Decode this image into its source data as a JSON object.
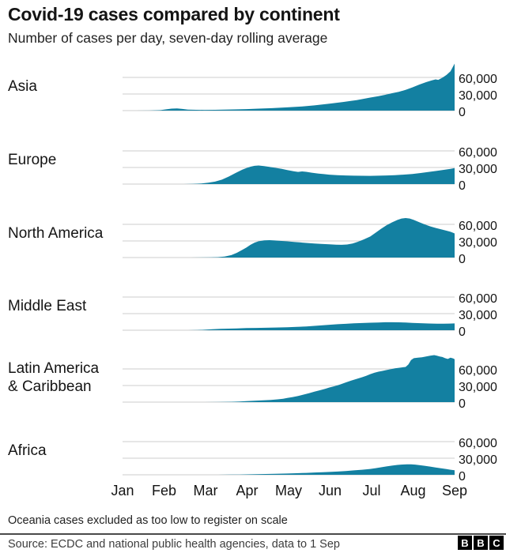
{
  "header": {
    "title": "Covid-19 cases compared by continent",
    "subtitle": "Number of cases per day, seven-day rolling average"
  },
  "chart_data": {
    "type": "area",
    "small_multiples": true,
    "title": "Covid-19 cases compared by continent",
    "subtitle": "Number of cases per day, seven-day rolling average",
    "area_color": "#1380A1",
    "gridline_color": "#cccccc",
    "x_axis": {
      "month_labels": [
        "Jan",
        "Feb",
        "Mar",
        "Apr",
        "May",
        "Jun",
        "Jul",
        "Aug",
        "Sep"
      ],
      "start": "1 Jan",
      "end": "1 Sep",
      "total_days": 244
    },
    "y_axis": {
      "ticks": [
        60000,
        30000,
        0
      ],
      "tick_labels": [
        "60,000",
        "30,000",
        "0"
      ],
      "units": "cases per day"
    },
    "series": [
      {
        "name": "Asia",
        "label_lines": [
          "Asia"
        ],
        "points": [
          [
            0,
            0
          ],
          [
            10,
            0
          ],
          [
            20,
            100
          ],
          [
            28,
            900
          ],
          [
            32,
            2300
          ],
          [
            36,
            3600
          ],
          [
            40,
            3900
          ],
          [
            44,
            3000
          ],
          [
            48,
            1900
          ],
          [
            54,
            1400
          ],
          [
            60,
            1300
          ],
          [
            68,
            1400
          ],
          [
            75,
            1700
          ],
          [
            82,
            2100
          ],
          [
            91,
            2700
          ],
          [
            100,
            3500
          ],
          [
            110,
            4500
          ],
          [
            121,
            5800
          ],
          [
            131,
            7300
          ],
          [
            141,
            9500
          ],
          [
            152,
            12500
          ],
          [
            162,
            15500
          ],
          [
            172,
            19000
          ],
          [
            182,
            23500
          ],
          [
            188,
            26000
          ],
          [
            193,
            28500
          ],
          [
            198,
            31500
          ],
          [
            203,
            34000
          ],
          [
            208,
            37500
          ],
          [
            213,
            42000
          ],
          [
            218,
            47000
          ],
          [
            223,
            51500
          ],
          [
            227,
            54500
          ],
          [
            230,
            56500
          ],
          [
            232,
            55500
          ],
          [
            235,
            59500
          ],
          [
            238,
            64500
          ],
          [
            241,
            71000
          ],
          [
            244,
            85000
          ]
        ]
      },
      {
        "name": "Europe",
        "label_lines": [
          "Europe"
        ],
        "points": [
          [
            0,
            0
          ],
          [
            30,
            0
          ],
          [
            45,
            0
          ],
          [
            52,
            300
          ],
          [
            58,
            1100
          ],
          [
            63,
            2500
          ],
          [
            68,
            4500
          ],
          [
            73,
            8000
          ],
          [
            78,
            13500
          ],
          [
            83,
            20000
          ],
          [
            88,
            26000
          ],
          [
            91,
            29000
          ],
          [
            94,
            31500
          ],
          [
            97,
            33000
          ],
          [
            100,
            33500
          ],
          [
            104,
            32500
          ],
          [
            108,
            31000
          ],
          [
            112,
            29500
          ],
          [
            117,
            27500
          ],
          [
            121,
            25500
          ],
          [
            126,
            23000
          ],
          [
            129,
            22000
          ],
          [
            132,
            22800
          ],
          [
            135,
            22200
          ],
          [
            139,
            20500
          ],
          [
            144,
            19000
          ],
          [
            148,
            18000
          ],
          [
            152,
            17000
          ],
          [
            158,
            16200
          ],
          [
            164,
            15600
          ],
          [
            170,
            15200
          ],
          [
            176,
            15000
          ],
          [
            182,
            14900
          ],
          [
            188,
            15200
          ],
          [
            194,
            15600
          ],
          [
            200,
            16200
          ],
          [
            206,
            17000
          ],
          [
            213,
            18200
          ],
          [
            219,
            20000
          ],
          [
            225,
            22000
          ],
          [
            231,
            24000
          ],
          [
            237,
            26000
          ],
          [
            241,
            27500
          ],
          [
            244,
            28800
          ]
        ]
      },
      {
        "name": "North America",
        "label_lines": [
          "North America"
        ],
        "points": [
          [
            0,
            0
          ],
          [
            50,
            0
          ],
          [
            58,
            100
          ],
          [
            65,
            300
          ],
          [
            70,
            700
          ],
          [
            75,
            1800
          ],
          [
            80,
            4500
          ],
          [
            84,
            8500
          ],
          [
            88,
            14000
          ],
          [
            91,
            18000
          ],
          [
            94,
            23000
          ],
          [
            97,
            27000
          ],
          [
            100,
            29500
          ],
          [
            104,
            31000
          ],
          [
            108,
            31500
          ],
          [
            112,
            30800
          ],
          [
            117,
            30000
          ],
          [
            121,
            29300
          ],
          [
            126,
            28300
          ],
          [
            131,
            27300
          ],
          [
            136,
            26300
          ],
          [
            141,
            25400
          ],
          [
            146,
            24600
          ],
          [
            152,
            23800
          ],
          [
            157,
            23200
          ],
          [
            161,
            23000
          ],
          [
            165,
            23600
          ],
          [
            169,
            25500
          ],
          [
            173,
            28500
          ],
          [
            177,
            32500
          ],
          [
            182,
            38000
          ],
          [
            186,
            45000
          ],
          [
            190,
            52000
          ],
          [
            194,
            58500
          ],
          [
            198,
            63500
          ],
          [
            202,
            68000
          ],
          [
            205,
            70500
          ],
          [
            208,
            71500
          ],
          [
            211,
            70500
          ],
          [
            214,
            68000
          ],
          [
            218,
            64000
          ],
          [
            222,
            60000
          ],
          [
            226,
            56500
          ],
          [
            230,
            53500
          ],
          [
            234,
            51000
          ],
          [
            238,
            48500
          ],
          [
            241,
            46500
          ],
          [
            243,
            44500
          ],
          [
            244,
            43500
          ]
        ]
      },
      {
        "name": "Middle East",
        "label_lines": [
          "Middle East"
        ],
        "points": [
          [
            0,
            0
          ],
          [
            48,
            0
          ],
          [
            55,
            300
          ],
          [
            60,
            900
          ],
          [
            66,
            1700
          ],
          [
            72,
            2400
          ],
          [
            78,
            2900
          ],
          [
            84,
            3300
          ],
          [
            91,
            3800
          ],
          [
            98,
            4200
          ],
          [
            105,
            4500
          ],
          [
            112,
            4800
          ],
          [
            121,
            5400
          ],
          [
            128,
            6000
          ],
          [
            135,
            6900
          ],
          [
            141,
            7800
          ],
          [
            147,
            8800
          ],
          [
            152,
            9800
          ],
          [
            158,
            10800
          ],
          [
            164,
            11600
          ],
          [
            170,
            12400
          ],
          [
            176,
            13000
          ],
          [
            182,
            13500
          ],
          [
            188,
            14000
          ],
          [
            193,
            14400
          ],
          [
            198,
            14500
          ],
          [
            203,
            14300
          ],
          [
            208,
            13800
          ],
          [
            213,
            13300
          ],
          [
            219,
            12700
          ],
          [
            225,
            12200
          ],
          [
            231,
            11900
          ],
          [
            236,
            11800
          ],
          [
            240,
            12000
          ],
          [
            244,
            12300
          ]
        ]
      },
      {
        "name": "Latin America & Caribbean",
        "label_lines": [
          "Latin America",
          "& Caribbean"
        ],
        "points": [
          [
            0,
            0
          ],
          [
            60,
            0
          ],
          [
            70,
            150
          ],
          [
            80,
            500
          ],
          [
            86,
            1100
          ],
          [
            91,
            1800
          ],
          [
            97,
            2400
          ],
          [
            103,
            3100
          ],
          [
            109,
            4000
          ],
          [
            114,
            5000
          ],
          [
            118,
            6200
          ],
          [
            121,
            7500
          ],
          [
            125,
            9200
          ],
          [
            129,
            11200
          ],
          [
            133,
            13600
          ],
          [
            137,
            16200
          ],
          [
            141,
            18800
          ],
          [
            145,
            21500
          ],
          [
            149,
            24200
          ],
          [
            152,
            26500
          ],
          [
            156,
            29000
          ],
          [
            160,
            32000
          ],
          [
            164,
            35500
          ],
          [
            168,
            39000
          ],
          [
            172,
            42000
          ],
          [
            176,
            45000
          ],
          [
            179,
            47500
          ],
          [
            182,
            50500
          ],
          [
            185,
            53000
          ],
          [
            188,
            55000
          ],
          [
            191,
            56500
          ],
          [
            194,
            58000
          ],
          [
            197,
            59500
          ],
          [
            200,
            61000
          ],
          [
            203,
            62000
          ],
          [
            206,
            63000
          ],
          [
            208,
            63500
          ],
          [
            210,
            68000
          ],
          [
            212,
            76000
          ],
          [
            214,
            79500
          ],
          [
            217,
            80500
          ],
          [
            220,
            81000
          ],
          [
            223,
            82500
          ],
          [
            226,
            84000
          ],
          [
            229,
            85000
          ],
          [
            231,
            84000
          ],
          [
            233,
            82500
          ],
          [
            235,
            81500
          ],
          [
            237,
            79500
          ],
          [
            239,
            78000
          ],
          [
            241,
            80500
          ],
          [
            243,
            79000
          ],
          [
            244,
            77500
          ]
        ]
      },
      {
        "name": "Africa",
        "label_lines": [
          "Africa"
        ],
        "points": [
          [
            0,
            0
          ],
          [
            70,
            0
          ],
          [
            80,
            250
          ],
          [
            86,
            450
          ],
          [
            91,
            700
          ],
          [
            98,
            1000
          ],
          [
            105,
            1400
          ],
          [
            112,
            1800
          ],
          [
            121,
            2300
          ],
          [
            128,
            2800
          ],
          [
            135,
            3400
          ],
          [
            141,
            4100
          ],
          [
            147,
            4600
          ],
          [
            152,
            5100
          ],
          [
            158,
            5900
          ],
          [
            164,
            6900
          ],
          [
            170,
            8000
          ],
          [
            176,
            9200
          ],
          [
            182,
            10600
          ],
          [
            186,
            12000
          ],
          [
            190,
            13600
          ],
          [
            194,
            15200
          ],
          [
            198,
            16600
          ],
          [
            202,
            17800
          ],
          [
            206,
            18600
          ],
          [
            209,
            19000
          ],
          [
            212,
            18900
          ],
          [
            215,
            18400
          ],
          [
            218,
            17600
          ],
          [
            222,
            16300
          ],
          [
            226,
            14800
          ],
          [
            230,
            13300
          ],
          [
            234,
            11800
          ],
          [
            238,
            10300
          ],
          [
            241,
            9200
          ],
          [
            244,
            8200
          ]
        ]
      }
    ]
  },
  "footer": {
    "note": "Oceania cases excluded as too low to register on scale",
    "source": "Source: ECDC and national public health agencies, data to 1 Sep",
    "logo_letters": [
      "B",
      "B",
      "C"
    ]
  }
}
